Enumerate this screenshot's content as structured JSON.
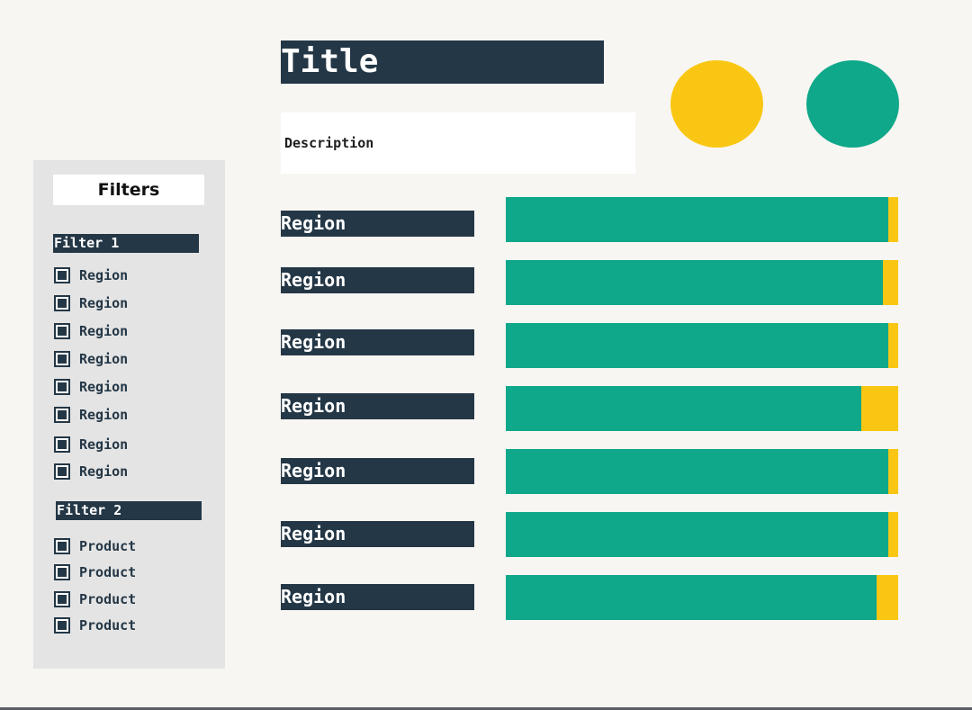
{
  "header": {
    "title": "Title",
    "description": "Description"
  },
  "kpis": [
    {
      "name": "kpi-yellow",
      "color": "#f9c713"
    },
    {
      "name": "kpi-green",
      "color": "#0fa88a"
    }
  ],
  "sidebar": {
    "heading": "Filters",
    "filter1": {
      "label": "Filter 1",
      "options": [
        "Region",
        "Region",
        "Region",
        "Region",
        "Region",
        "Region",
        "Region",
        "Region"
      ]
    },
    "filter2": {
      "label": "Filter 2",
      "options": [
        "Product",
        "Product",
        "Product",
        "Product"
      ]
    }
  },
  "chart_data": {
    "type": "bar",
    "orientation": "horizontal",
    "stacked": true,
    "categories": [
      "Region",
      "Region",
      "Region",
      "Region",
      "Region",
      "Region",
      "Region"
    ],
    "series": [
      {
        "color": "#0fa88a",
        "values": [
          0.975,
          0.96,
          0.975,
          0.905,
          0.975,
          0.975,
          0.945
        ]
      },
      {
        "color": "#f9c713",
        "values": [
          0.025,
          0.04,
          0.025,
          0.095,
          0.025,
          0.025,
          0.055
        ]
      }
    ],
    "grid": false,
    "legend": "none"
  },
  "colors": {
    "navy": "#243746",
    "green": "#0fa88a",
    "yellow": "#f9c713",
    "background": "#f8f6f2",
    "sidebar": "#e4e4e4"
  }
}
